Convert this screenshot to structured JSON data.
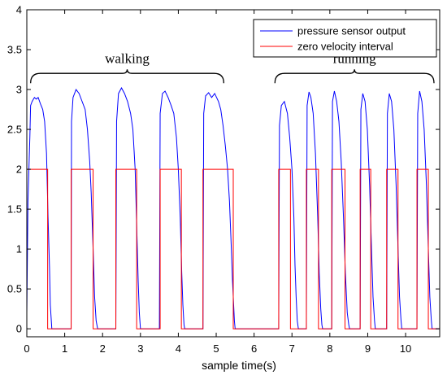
{
  "chart_data": {
    "type": "line",
    "title": "",
    "xlabel": "sample time(s)",
    "ylabel": "",
    "xlim": [
      0,
      10.9
    ],
    "ylim": [
      -0.1,
      4.0
    ],
    "x_ticks": [
      "0",
      "1",
      "2",
      "3",
      "4",
      "5",
      "6",
      "7",
      "8",
      "9",
      "10"
    ],
    "y_ticks": [
      "0",
      "0.5",
      "1",
      "1.5",
      "2",
      "2.5",
      "3",
      "3.5",
      "4"
    ],
    "grid": false,
    "legend_position": "top-right",
    "colors": {
      "pressure": "#0000ff",
      "zero_velocity": "#ff0000"
    },
    "series": [
      {
        "name": "pressure sensor output",
        "x": [
          0.0,
          0.03,
          0.08,
          0.1,
          0.14,
          0.2,
          0.25,
          0.3,
          0.36,
          0.42,
          0.47,
          0.52,
          0.56,
          0.6,
          0.62,
          0.66,
          1.17,
          1.18,
          1.22,
          1.3,
          1.38,
          1.46,
          1.54,
          1.6,
          1.66,
          1.7,
          1.75,
          1.79,
          1.83,
          1.87,
          1.9,
          2.35,
          2.37,
          2.42,
          2.5,
          2.58,
          2.66,
          2.74,
          2.8,
          2.86,
          2.9,
          2.94,
          2.97,
          3.0,
          3.02,
          3.5,
          3.52,
          3.58,
          3.65,
          3.73,
          3.81,
          3.88,
          3.95,
          4.0,
          4.05,
          4.09,
          4.12,
          4.15,
          4.17,
          4.65,
          4.67,
          4.72,
          4.8,
          4.88,
          4.96,
          5.06,
          5.12,
          5.18,
          5.24,
          5.3,
          5.35,
          5.4,
          5.43,
          5.46,
          5.48,
          5.5,
          6.65,
          6.67,
          6.72,
          6.8,
          6.88,
          6.94,
          7.0,
          7.05,
          7.08,
          7.11,
          7.14,
          7.17,
          7.38,
          7.4,
          7.45,
          7.5,
          7.56,
          7.62,
          7.68,
          7.72,
          7.76,
          7.79,
          7.81,
          8.05,
          8.07,
          8.12,
          8.18,
          8.24,
          8.3,
          8.36,
          8.41,
          8.46,
          8.5,
          8.52,
          8.8,
          8.82,
          8.87,
          8.93,
          8.99,
          9.05,
          9.1,
          9.14,
          9.18,
          9.2,
          9.5,
          9.52,
          9.57,
          9.63,
          9.69,
          9.75,
          9.8,
          9.84,
          9.88,
          9.9,
          10.3,
          10.32,
          10.37,
          10.43,
          10.49,
          10.55,
          10.6,
          10.64,
          10.68,
          10.7,
          10.9
        ],
        "y": [
          0.2,
          1.6,
          2.4,
          2.8,
          2.85,
          2.9,
          2.88,
          2.9,
          2.82,
          2.75,
          2.6,
          2.2,
          1.4,
          0.75,
          0.3,
          0.0,
          0.0,
          2.6,
          2.9,
          3.0,
          2.95,
          2.85,
          2.75,
          2.5,
          2.1,
          1.7,
          1.0,
          0.4,
          0.1,
          0.0,
          0.0,
          0.0,
          2.6,
          2.95,
          3.02,
          2.95,
          2.85,
          2.7,
          2.5,
          2.0,
          1.3,
          0.6,
          0.2,
          0.0,
          0.0,
          0.0,
          2.7,
          2.95,
          2.98,
          2.9,
          2.8,
          2.7,
          2.4,
          2.0,
          1.4,
          0.7,
          0.3,
          0.05,
          0.0,
          0.0,
          2.7,
          2.92,
          2.96,
          2.9,
          2.95,
          2.85,
          2.75,
          2.55,
          2.3,
          2.0,
          1.6,
          1.0,
          0.6,
          0.3,
          0.1,
          0.0,
          0.0,
          2.55,
          2.8,
          2.85,
          2.7,
          2.4,
          2.0,
          1.4,
          0.8,
          0.4,
          0.1,
          0.0,
          0.0,
          2.8,
          2.97,
          2.9,
          2.7,
          2.2,
          1.4,
          0.7,
          0.25,
          0.05,
          0.0,
          0.0,
          2.85,
          2.98,
          2.85,
          2.6,
          2.1,
          1.4,
          0.7,
          0.2,
          0.05,
          0.0,
          0.0,
          2.75,
          2.95,
          2.85,
          2.5,
          1.8,
          1.0,
          0.4,
          0.1,
          0.0,
          0.0,
          2.7,
          2.95,
          2.85,
          2.5,
          1.8,
          1.0,
          0.4,
          0.1,
          0.0,
          0.0,
          2.7,
          2.98,
          2.85,
          2.5,
          1.8,
          1.0,
          0.4,
          0.1,
          0.0,
          0.0
        ]
      },
      {
        "name": "zero velocity interval",
        "x": [
          0.0,
          0.0,
          0.55,
          0.55,
          1.17,
          1.17,
          1.75,
          1.75,
          2.35,
          2.35,
          2.9,
          2.9,
          3.52,
          3.52,
          4.08,
          4.08,
          4.65,
          4.65,
          5.45,
          5.45,
          6.65,
          6.65,
          6.96,
          6.96,
          7.38,
          7.38,
          7.7,
          7.7,
          8.05,
          8.05,
          8.4,
          8.4,
          8.8,
          8.8,
          9.08,
          9.08,
          9.5,
          9.5,
          9.8,
          9.8,
          10.3,
          10.3,
          10.6,
          10.6,
          10.9
        ],
        "y": [
          0,
          2,
          2,
          0,
          0,
          2,
          2,
          0,
          0,
          2,
          2,
          0,
          0,
          2,
          2,
          0,
          0,
          2,
          2,
          0,
          0,
          2,
          2,
          0,
          0,
          2,
          2,
          0,
          0,
          2,
          2,
          0,
          0,
          2,
          2,
          0,
          0,
          2,
          2,
          0,
          0,
          2,
          2,
          0,
          0
        ]
      }
    ],
    "annotations": [
      {
        "text": "walking",
        "x_start": 0.1,
        "x_end": 5.2,
        "y": 3.08,
        "text_y": 3.33
      },
      {
        "text": "running",
        "x_start": 6.55,
        "x_end": 10.75,
        "y": 3.08,
        "text_y": 3.33
      }
    ]
  }
}
